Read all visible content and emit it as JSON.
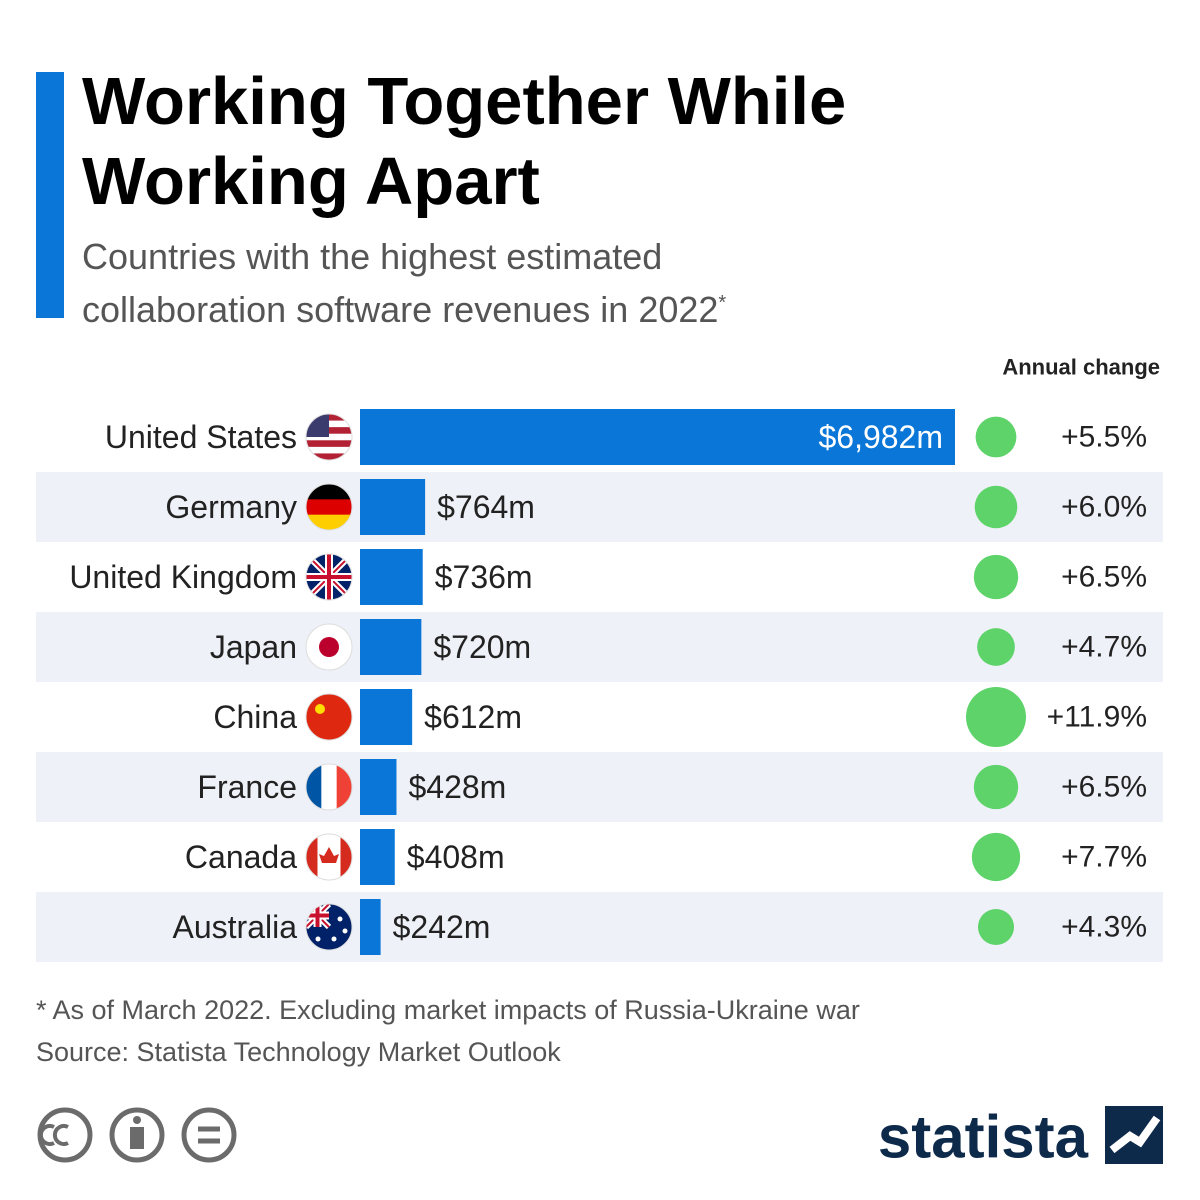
{
  "chart_data": {
    "type": "bar",
    "title": "Working Together While Working Apart",
    "subtitle": "Countries with the highest estimated collaboration software revenues in 2022",
    "subtitle_marker": "*",
    "categories": [
      "United States",
      "Germany",
      "United Kingdom",
      "Japan",
      "China",
      "France",
      "Canada",
      "Australia"
    ],
    "values": [
      6982,
      764,
      736,
      720,
      612,
      428,
      408,
      242
    ],
    "value_labels": [
      "$6,982m",
      "$764m",
      "$736m",
      "$720m",
      "$612m",
      "$428m",
      "$408m",
      "$242m"
    ],
    "color": "#0a76d8",
    "annual_change": {
      "label": "Annual change",
      "values": [
        5.5,
        6.0,
        6.5,
        4.7,
        11.9,
        6.5,
        7.7,
        4.3
      ],
      "value_labels": [
        "+5.5%",
        "+6.0%",
        "+6.5%",
        "+4.7%",
        "+11.9%",
        "+6.5%",
        "+7.7%",
        "+4.3%"
      ],
      "color": "#5ed36a"
    },
    "footnote": "* As of March 2022. Excluding market impacts of Russia-Ukraine war",
    "source": "Source: Statista Technology Market Outlook",
    "logo": "statista"
  }
}
